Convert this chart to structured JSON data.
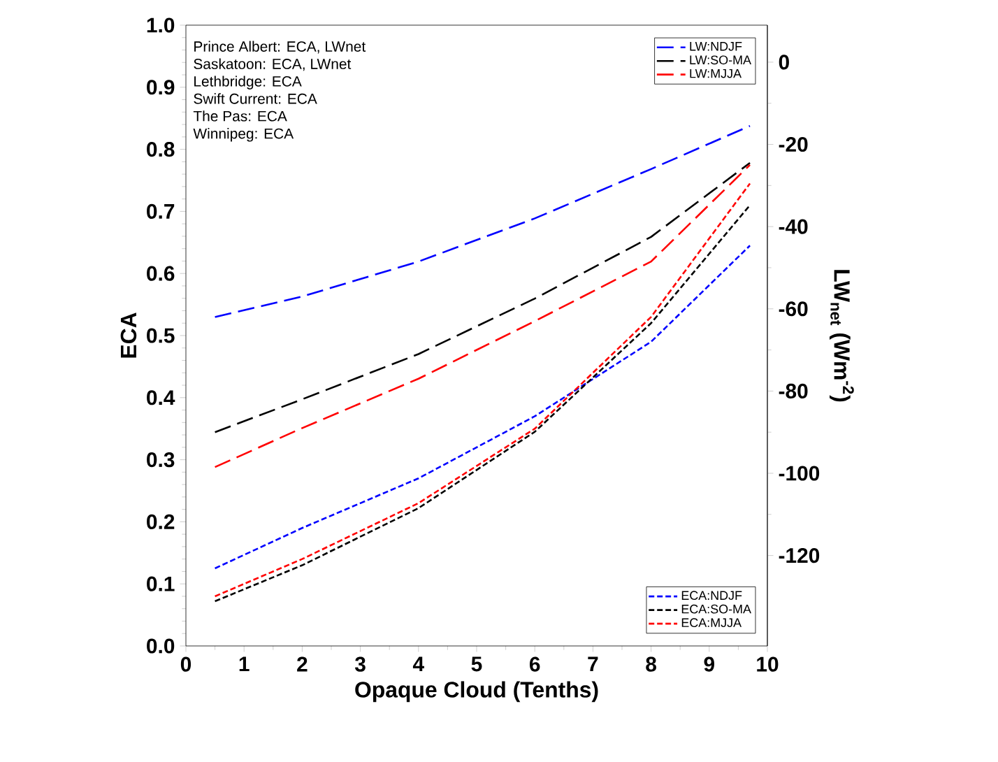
{
  "chart_data": {
    "type": "line",
    "xlabel": "Opaque Cloud (Tenths)",
    "ylabel": "ECA",
    "y2label": "LW$_{net}$ (Wm$^{-2}$)",
    "annotations": [
      "Prince Albert: ECA, LWnet",
      "Saskatoon: ECA, LWnet",
      "Lethbridge: ECA",
      "Swift Current: ECA",
      "The Pas: ECA",
      "Winnipeg: ECA"
    ],
    "x": [
      0.5,
      2,
      4,
      6,
      8,
      9.7
    ],
    "series": [
      {
        "name": "LW:NDJF",
        "color": "#0000ff",
        "axis": "y2",
        "line_style": "dashed",
        "values": [
          -62,
          -57,
          -48.5,
          -38,
          -26,
          -15.5
        ]
      },
      {
        "name": "LW:SO-MA",
        "color": "#000000",
        "axis": "y2",
        "line_style": "dashed",
        "values": [
          -90,
          -82,
          -71,
          -57.5,
          -42.5,
          -24.5
        ]
      },
      {
        "name": "LW:MJJA",
        "color": "#ff0000",
        "axis": "y2",
        "line_style": "dashed",
        "values": [
          -98.5,
          -89,
          -77,
          -63,
          -48.5,
          -25
        ]
      },
      {
        "name": "ECA:NDJF",
        "color": "#0000ff",
        "axis": "y",
        "line_style": "dashed",
        "values": [
          0.125,
          0.19,
          0.27,
          0.37,
          0.49,
          0.645
        ]
      },
      {
        "name": "ECA:SO-MA",
        "color": "#000000",
        "axis": "y",
        "line_style": "dashed",
        "values": [
          0.072,
          0.13,
          0.222,
          0.345,
          0.52,
          0.71
        ]
      },
      {
        "name": "ECA:MJJA",
        "color": "#ff0000",
        "axis": "y",
        "line_style": "dashed",
        "values": [
          0.08,
          0.14,
          0.23,
          0.35,
          0.53,
          0.745
        ]
      }
    ],
    "xlim": [
      0,
      10
    ],
    "xticks": [
      0,
      1,
      2,
      3,
      4,
      5,
      6,
      7,
      8,
      9,
      10
    ],
    "ylim": [
      0,
      1
    ],
    "yticks": [
      {
        "value": 0,
        "label": "0.0"
      },
      {
        "value": 0.1,
        "label": "0.1"
      },
      {
        "value": 0.2,
        "label": "0.2"
      },
      {
        "value": 0.3,
        "label": "0.3"
      },
      {
        "value": 0.4,
        "label": "0.4"
      },
      {
        "value": 0.5,
        "label": "0.5"
      },
      {
        "value": 0.6,
        "label": "0.6"
      },
      {
        "value": 0.7,
        "label": "0.7"
      },
      {
        "value": 0.8,
        "label": "0.8"
      },
      {
        "value": 0.9,
        "label": "0.9"
      },
      {
        "value": 1,
        "label": "1.0"
      }
    ],
    "y2lim": [
      -142,
      9
    ],
    "y2ticks": [
      -120,
      -100,
      -80,
      -60,
      -40,
      -20,
      0
    ],
    "legend": "right",
    "marker": "none"
  }
}
